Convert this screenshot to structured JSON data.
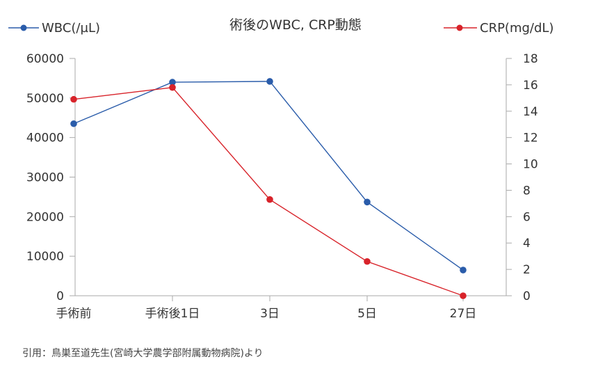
{
  "chart_data": {
    "type": "line",
    "title": "術後のWBC, CRP動態",
    "categories": [
      "手術前",
      "手術後1日",
      "3日",
      "5日",
      "27日"
    ],
    "series": [
      {
        "name": "WBC(/µL)",
        "axis": "left",
        "color": "#2a5caa",
        "values": [
          43500,
          54000,
          54200,
          23700,
          6500
        ]
      },
      {
        "name": "CRP(mg/dL)",
        "axis": "right",
        "color": "#d8232a",
        "values": [
          14.9,
          15.8,
          7.3,
          2.6,
          0
        ]
      }
    ],
    "y_left": {
      "min": 0,
      "max": 60000,
      "ticks": [
        0,
        10000,
        20000,
        30000,
        40000,
        50000,
        60000
      ]
    },
    "y_right": {
      "min": 0,
      "max": 18,
      "ticks": [
        0,
        2,
        4,
        6,
        8,
        10,
        12,
        14,
        16,
        18
      ]
    },
    "grid": false,
    "legend": "top"
  },
  "caption": "引用：鳥巣至道先生(宮崎大学農学部附属動物病院)より"
}
